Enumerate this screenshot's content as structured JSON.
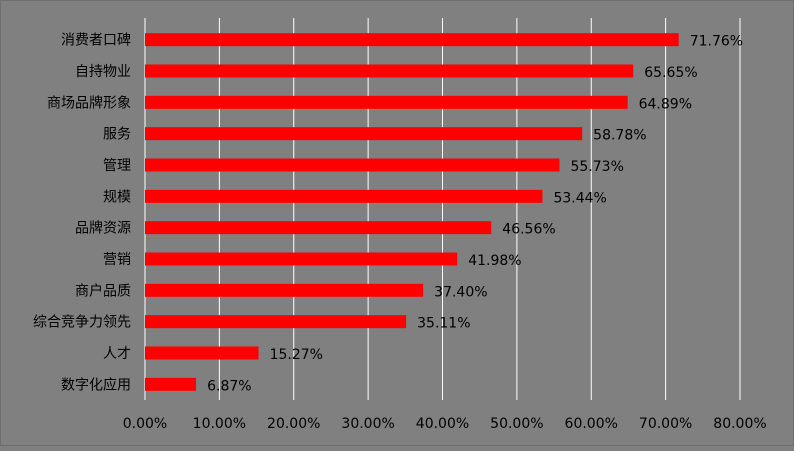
{
  "chart_data": {
    "type": "bar",
    "orientation": "horizontal",
    "title": "",
    "xlabel": "",
    "ylabel": "",
    "categories": [
      "消费者口碑",
      "自持物业",
      "商场品牌形象",
      "服务",
      "管理",
      "规模",
      "品牌资源",
      "营销",
      "商户品质",
      "综合竞争力领先",
      "人才",
      "数字化应用"
    ],
    "values": [
      71.76,
      65.65,
      64.89,
      58.78,
      55.73,
      53.44,
      46.56,
      41.98,
      37.4,
      35.11,
      15.27,
      6.87
    ],
    "data_labels": [
      "71.76%",
      "65.65%",
      "64.89%",
      "58.78%",
      "55.73%",
      "53.44%",
      "46.56%",
      "41.98%",
      "37.40%",
      "35.11%",
      "15.27%",
      "6.87%"
    ],
    "xlim": [
      0,
      80
    ],
    "x_ticks": [
      0,
      10,
      20,
      30,
      40,
      50,
      60,
      70,
      80
    ],
    "x_tick_labels": [
      "0.00%",
      "10.00%",
      "20.00%",
      "30.00%",
      "40.00%",
      "50.00%",
      "60.00%",
      "70.00%",
      "80.00%"
    ],
    "grid": "vertical",
    "legend": "none",
    "colors": {
      "bar": "#FF0000",
      "background": "#808080",
      "gridline": "#FFFFFF",
      "text": "#000000"
    }
  }
}
